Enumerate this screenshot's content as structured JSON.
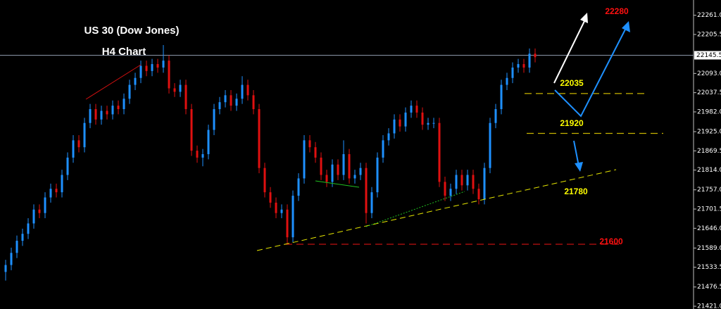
{
  "chart_data": {
    "type": "candlestick",
    "title": "US 30 (Dow Jones)",
    "subtitle": "H4 Chart",
    "up_color": "#1e90ff",
    "down_color": "#e01010",
    "ylim": [
      21413,
      22305
    ],
    "yticks": [
      {
        "value": 22261,
        "label": "22261.0"
      },
      22205.5,
      {
        "value": 22093,
        "label": "22093.0"
      },
      22037.5,
      {
        "value": 21982,
        "label": "21982.0"
      },
      {
        "value": 21925,
        "label": "21925.0"
      },
      21869.5,
      {
        "value": 21814,
        "label": "21814.0"
      },
      {
        "value": 21757,
        "label": "21757.0"
      },
      21701.5,
      {
        "value": 21646,
        "label": "21646.0"
      },
      {
        "value": 21589,
        "label": "21589.0"
      },
      21533.5,
      21476.5,
      {
        "value": 21421,
        "label": "21421.0"
      }
    ],
    "current_price": 22145.5,
    "levels": [
      {
        "value": 22280,
        "color": "#ff1010"
      },
      {
        "value": 22035,
        "color": "#ffff00"
      },
      {
        "value": 21920,
        "color": "#ffff00"
      },
      {
        "value": 21780,
        "color": "#ffff00"
      },
      {
        "value": 21600,
        "color": "#ff1010"
      }
    ],
    "open": [
      21520,
      21540,
      21575,
      21610,
      21630,
      21660,
      21700,
      21690,
      21735,
      21760,
      21750,
      21800,
      21850,
      21900,
      21880,
      21950,
      21990,
      21960,
      21985,
      21975,
      22000,
      21990,
      22020,
      22060,
      22080,
      22115,
      22100,
      22120,
      22110,
      22130,
      22050,
      22040,
      22060,
      21990,
      21870,
      21850,
      21860,
      21930,
      21990,
      22010,
      22030,
      22000,
      22020,
      22060,
      22030,
      21990,
      21820,
      21750,
      21720,
      21690,
      21700,
      21620,
      21740,
      21790,
      21900,
      21880,
      21850,
      21800,
      21780,
      21830,
      21800,
      21860,
      21790,
      21800,
      21820,
      21690,
      21750,
      21850,
      21900,
      21920,
      21960,
      21940,
      21980,
      22000,
      21980,
      21945,
      21950,
      21950,
      21780,
      21740,
      21760,
      21800,
      21770,
      21800,
      21760,
      21730,
      21820,
      21950,
      21990,
      22060,
      22080,
      22110,
      22120,
      22110,
      22150
    ],
    "high": [
      21555,
      21590,
      21625,
      21645,
      21675,
      21715,
      21715,
      21750,
      21775,
      21775,
      21815,
      21865,
      21915,
      21915,
      21965,
      22005,
      22005,
      22000,
      22000,
      22015,
      22015,
      22035,
      22075,
      22095,
      22130,
      22130,
      22135,
      22135,
      22175,
      22145,
      22065,
      22075,
      22075,
      22005,
      21885,
      21875,
      21945,
      22005,
      22025,
      22045,
      22045,
      22035,
      22085,
      22075,
      22045,
      22005,
      21835,
      21765,
      21735,
      21715,
      21715,
      21755,
      21805,
      21915,
      21915,
      21895,
      21865,
      21815,
      21845,
      21845,
      21900,
      21875,
      21815,
      21835,
      21835,
      21765,
      21865,
      21915,
      21935,
      21975,
      21975,
      21995,
      22015,
      22015,
      21995,
      21965,
      21965,
      21965,
      21795,
      21775,
      21815,
      21815,
      21815,
      21815,
      21775,
      21835,
      21965,
      22005,
      22075,
      22095,
      22125,
      22135,
      22135,
      22165,
      22165
    ],
    "low": [
      21495,
      21525,
      21560,
      21595,
      21615,
      21645,
      21675,
      21675,
      21720,
      21735,
      21735,
      21785,
      21835,
      21865,
      21865,
      21935,
      21945,
      21945,
      21960,
      21960,
      21975,
      21975,
      22005,
      22045,
      22065,
      22085,
      22085,
      22095,
      22095,
      22035,
      22025,
      22025,
      21975,
      21855,
      21835,
      21825,
      21845,
      21915,
      21975,
      21995,
      21985,
      21985,
      22005,
      22015,
      21975,
      21805,
      21735,
      21705,
      21675,
      21675,
      21600,
      21605,
      21725,
      21775,
      21865,
      21835,
      21785,
      21765,
      21765,
      21785,
      21785,
      21775,
      21775,
      21785,
      21660,
      21675,
      21735,
      21835,
      21885,
      21905,
      21925,
      21925,
      21965,
      21965,
      21930,
      21930,
      21935,
      21765,
      21725,
      21725,
      21745,
      21755,
      21755,
      21745,
      21715,
      21715,
      21805,
      21935,
      21975,
      22045,
      22065,
      22095,
      22095,
      22095,
      22125
    ],
    "close": [
      21540,
      21575,
      21610,
      21630,
      21660,
      21700,
      21690,
      21735,
      21760,
      21750,
      21800,
      21850,
      21900,
      21880,
      21950,
      21990,
      21960,
      21985,
      21975,
      22000,
      21990,
      22020,
      22060,
      22080,
      22115,
      22100,
      22120,
      22110,
      22130,
      22050,
      22040,
      22060,
      21990,
      21870,
      21850,
      21860,
      21930,
      21990,
      22010,
      22030,
      22000,
      22020,
      22060,
      22030,
      21990,
      21820,
      21750,
      21720,
      21690,
      21700,
      21620,
      21740,
      21790,
      21900,
      21880,
      21850,
      21800,
      21780,
      21830,
      21800,
      21860,
      21790,
      21800,
      21820,
      21690,
      21750,
      21850,
      21900,
      21920,
      21960,
      21940,
      21980,
      22000,
      21980,
      21945,
      21950,
      21950,
      21780,
      21740,
      21760,
      21800,
      21770,
      21800,
      21760,
      21730,
      21820,
      21950,
      21990,
      22060,
      22080,
      22110,
      22120,
      22110,
      22150,
      22140
    ]
  }
}
